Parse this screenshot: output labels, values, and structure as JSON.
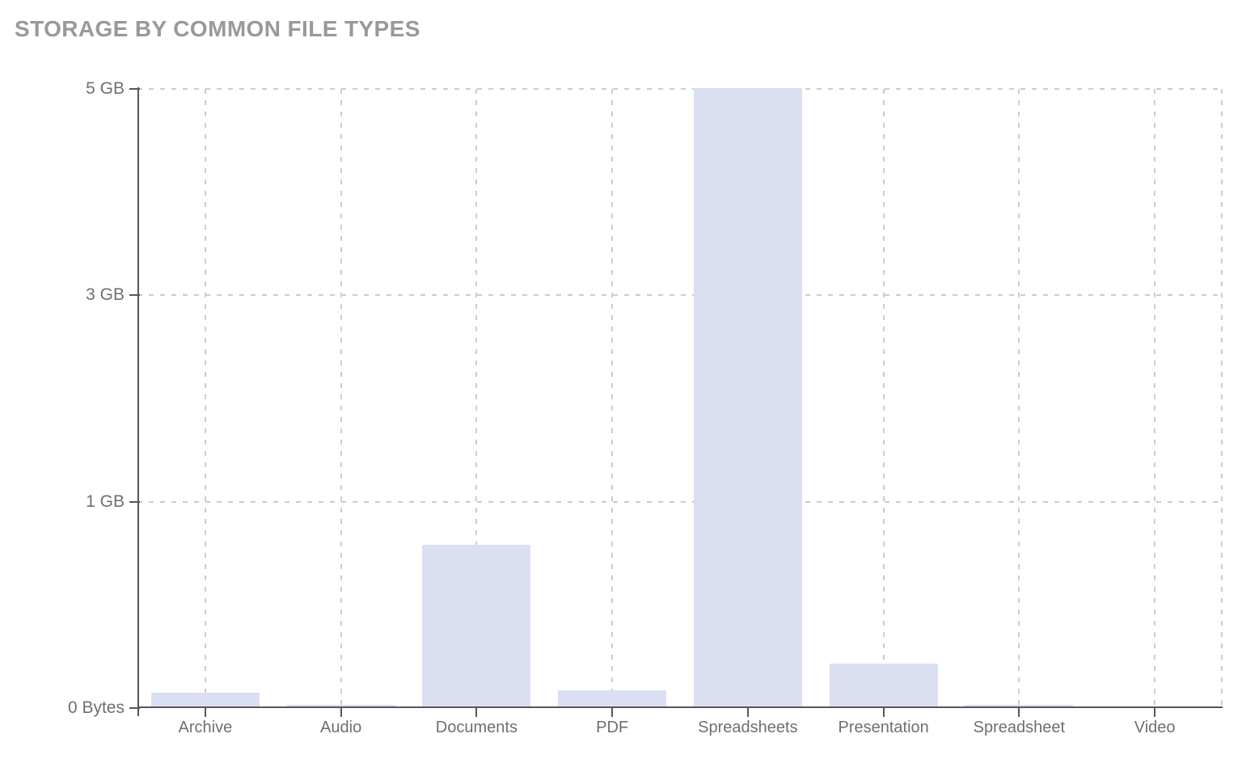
{
  "header": {
    "title": "STORAGE BY COMMON FILE TYPES"
  },
  "chart_data": {
    "type": "bar",
    "title": "STORAGE BY COMMON FILE TYPES",
    "categories": [
      "Archive",
      "Audio",
      "Documents",
      "PDF",
      "Spreadsheets",
      "Presentation",
      "Spreadsheet",
      "Video"
    ],
    "values": [
      0.12,
      0.02,
      1.31,
      0.14,
      5.0,
      0.35,
      0.02,
      0.0
    ],
    "unit": "GB",
    "xlabel": "",
    "ylabel": "",
    "ylim": [
      0,
      5
    ],
    "y_tick_labels": [
      "5 GB",
      "3 GB",
      "1 GB",
      "0 Bytes"
    ],
    "grid": "dashed, horizontal at ticks and vertical at category centers plus right edge",
    "legend": "none",
    "colors": {
      "bar_fill": "#dadff1",
      "grid": "#cccccc",
      "axis": "#55575a",
      "tick_label": "#6d6f72",
      "title": "#97999c"
    }
  }
}
